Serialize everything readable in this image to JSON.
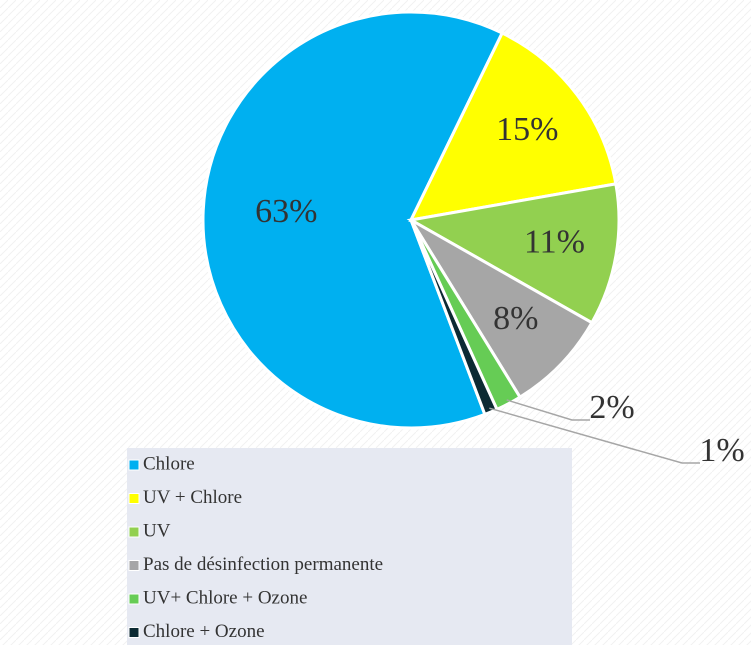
{
  "chart_data": {
    "type": "pie",
    "categories": [
      "Chlore",
      "UV + Chlore",
      "UV",
      "Pas de désinfection permanente",
      "UV+ Chlore + Ozone",
      "Chlore + Ozone"
    ],
    "values": [
      63,
      15,
      11,
      8,
      2,
      1
    ],
    "value_labels": [
      "63%",
      "15%",
      "11%",
      "8%",
      "2%",
      "1%"
    ],
    "colors": [
      "#00b0f0",
      "#ffff00",
      "#92d050",
      "#a6a6a6",
      "#66cc55",
      "#0c2a33"
    ],
    "legend": "bottom"
  }
}
